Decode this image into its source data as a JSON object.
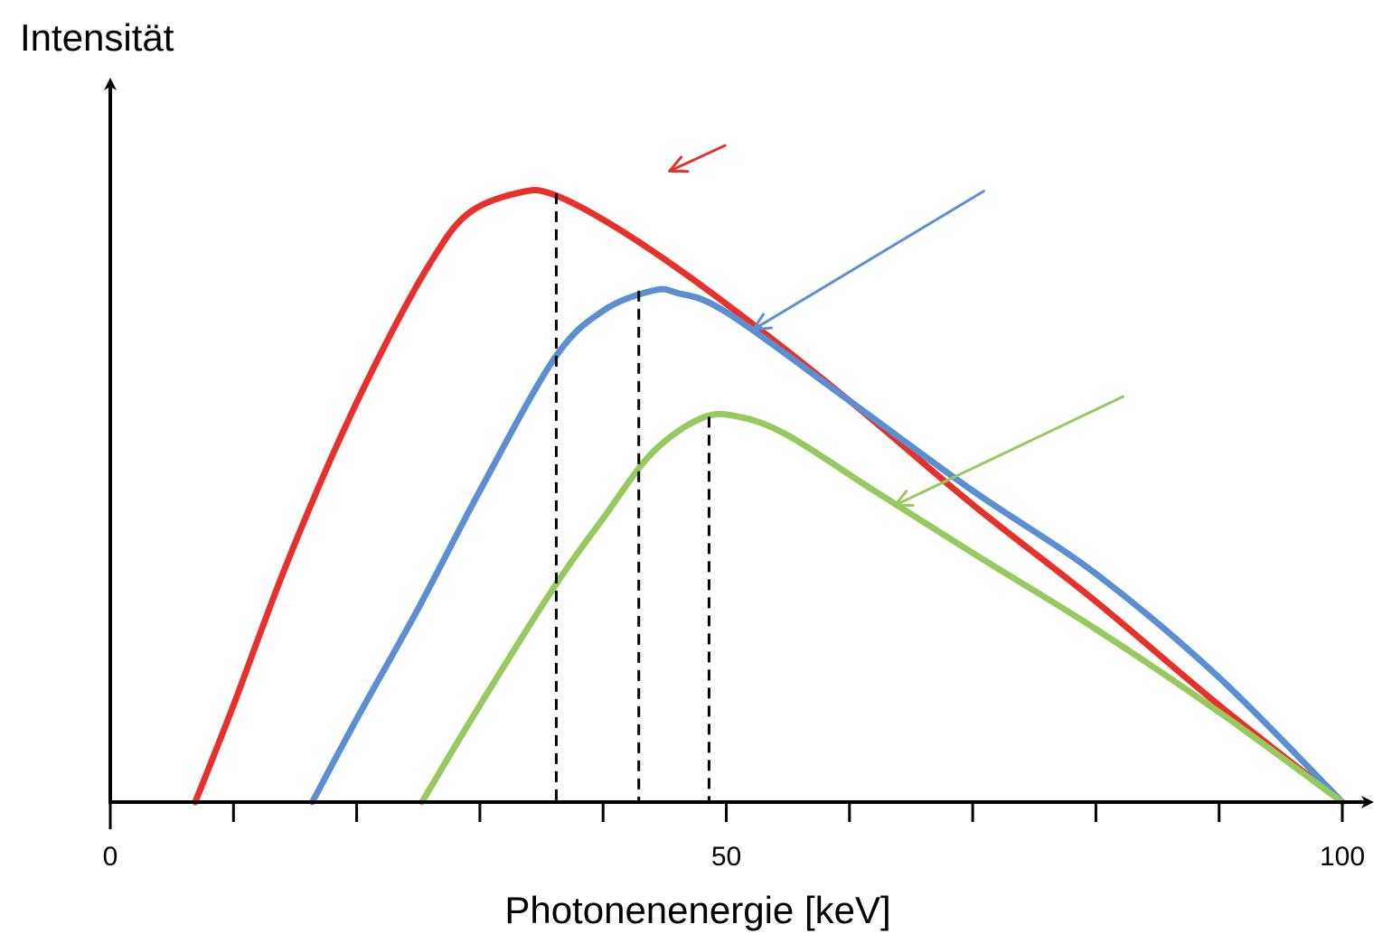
{
  "chart_data": {
    "type": "line",
    "title": "",
    "ylabel": "Intensität",
    "xlabel": "Photonenenergie [keV]",
    "xlim": [
      0,
      100
    ],
    "ylim": [
      0,
      100
    ],
    "x_ticks": [
      0,
      10,
      20,
      30,
      40,
      50,
      60,
      70,
      80,
      90,
      100
    ],
    "x_tick_labels": [
      {
        "x": 0,
        "label": "0"
      },
      {
        "x": 50,
        "label": "50"
      },
      {
        "x": 100,
        "label": "100"
      }
    ],
    "grid": false,
    "legend": "none",
    "series": [
      {
        "color": "#e8302a",
        "points": [
          [
            6.9,
            0
          ],
          [
            10,
            14
          ],
          [
            14,
            33
          ],
          [
            18,
            50
          ],
          [
            22,
            65
          ],
          [
            26,
            78
          ],
          [
            29,
            85
          ],
          [
            33,
            88
          ],
          [
            36,
            87.8
          ],
          [
            42,
            82
          ],
          [
            50,
            72
          ],
          [
            60,
            58
          ],
          [
            70,
            43
          ],
          [
            80,
            29
          ],
          [
            90,
            14
          ],
          [
            100,
            0
          ]
        ],
        "peak_x": 36.2,
        "arrow": {
          "from": [
            49.9,
            94.9
          ],
          "to": [
            45.4,
            91.2
          ]
        }
      },
      {
        "color": "#5b8fd2",
        "points": [
          [
            16.4,
            0
          ],
          [
            20,
            12
          ],
          [
            25,
            28
          ],
          [
            30,
            45
          ],
          [
            36,
            64
          ],
          [
            40,
            71
          ],
          [
            44,
            73.9
          ],
          [
            46,
            73.6
          ],
          [
            50,
            70.8
          ],
          [
            60,
            58
          ],
          [
            70,
            45
          ],
          [
            80,
            33
          ],
          [
            90,
            18
          ],
          [
            100,
            0
          ]
        ],
        "peak_x": 42.9,
        "arrow": {
          "from": [
            70.9,
            88.3
          ],
          "to": [
            52.2,
            68.3
          ]
        }
      },
      {
        "color": "#96c95e",
        "points": [
          [
            25.3,
            0
          ],
          [
            30,
            14
          ],
          [
            36,
            31
          ],
          [
            40,
            41
          ],
          [
            44,
            50.5
          ],
          [
            48,
            55.5
          ],
          [
            51,
            55.7
          ],
          [
            55,
            53
          ],
          [
            62,
            45
          ],
          [
            70,
            36
          ],
          [
            80,
            25
          ],
          [
            90,
            13
          ],
          [
            100,
            0
          ]
        ],
        "peak_x": 48.6,
        "arrow": {
          "from": [
            82.2,
            58.6
          ],
          "to": [
            63.7,
            42.9
          ]
        }
      }
    ]
  }
}
